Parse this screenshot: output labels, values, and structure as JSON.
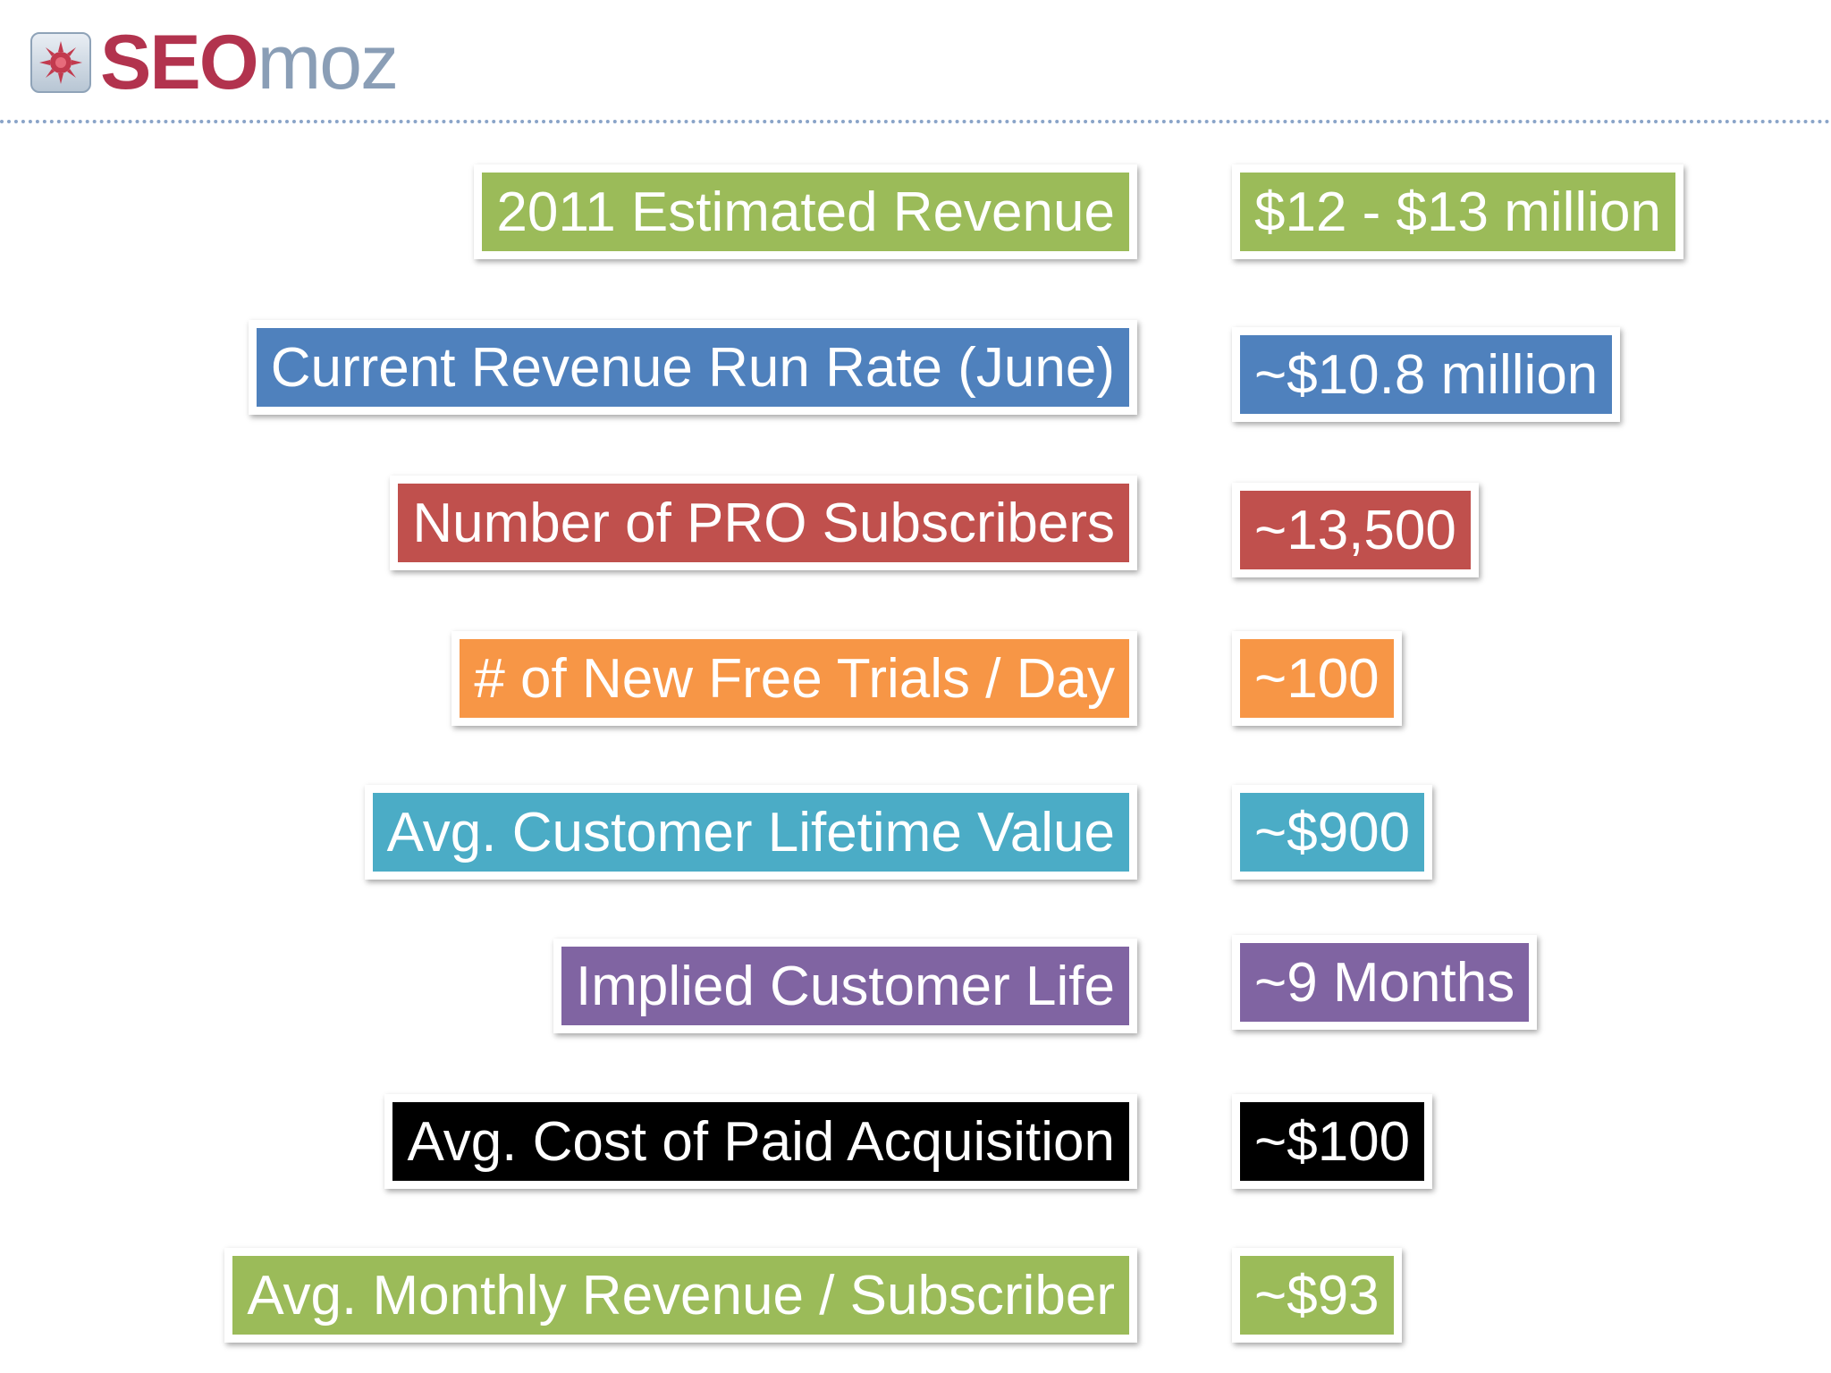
{
  "logo": {
    "seo": "SEO",
    "moz": "moz",
    "icon": "sun-gear-icon"
  },
  "metrics": [
    {
      "label": "2011 Estimated Revenue",
      "value": "$12 - $13 million",
      "color": "#9bbb59"
    },
    {
      "label": "Current Revenue Run Rate (June)",
      "value": "~$10.8 million",
      "color": "#4f81bd"
    },
    {
      "label": "Number of PRO Subscribers",
      "value": "~13,500",
      "color": "#c0504d"
    },
    {
      "label": "# of New Free Trials / Day",
      "value": "~100",
      "color": "#f79646"
    },
    {
      "label": "Avg. Customer Lifetime Value",
      "value": "~$900",
      "color": "#4bacc6"
    },
    {
      "label": "Implied Customer Life",
      "value": "~9 Months",
      "color": "#8064a2"
    },
    {
      "label": "Avg. Cost of Paid Acquisition",
      "value": "~$100",
      "color": "#000000"
    },
    {
      "label": "Avg. Monthly Revenue / Subscriber",
      "value": "~$93",
      "color": "#9bbb59"
    }
  ]
}
